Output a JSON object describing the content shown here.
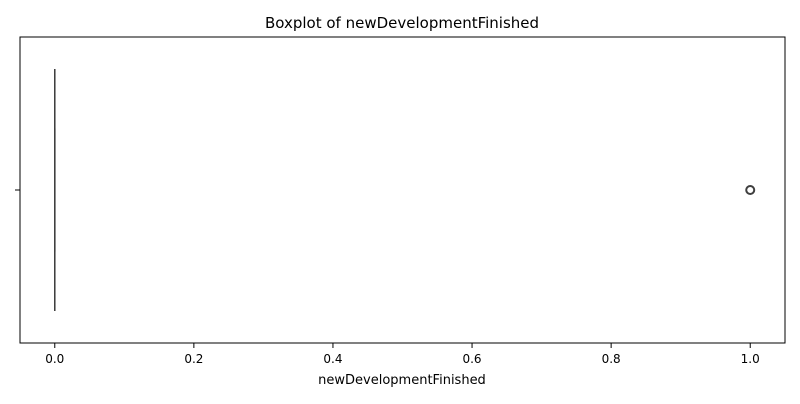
{
  "chart_data": {
    "type": "boxplot",
    "orientation": "horizontal",
    "title": "Boxplot of newDevelopmentFinished",
    "xlabel": "newDevelopmentFinished",
    "ylabel": "",
    "xlim": [
      -0.05,
      1.05
    ],
    "xticks": [
      0.0,
      0.2,
      0.4,
      0.6,
      0.8,
      1.0
    ],
    "xtick_labels": [
      "0.0",
      "0.2",
      "0.4",
      "0.6",
      "0.8",
      "1.0"
    ],
    "grid": false,
    "box": {
      "whisker_low": 0.0,
      "q1": 0.0,
      "median": 0.0,
      "q3": 0.0,
      "whisker_high": 0.0
    },
    "outliers": [
      1.0
    ],
    "colors": {
      "box_fill": "#1f77b4",
      "line": "#3f3f3f",
      "axis": "#000000"
    }
  }
}
